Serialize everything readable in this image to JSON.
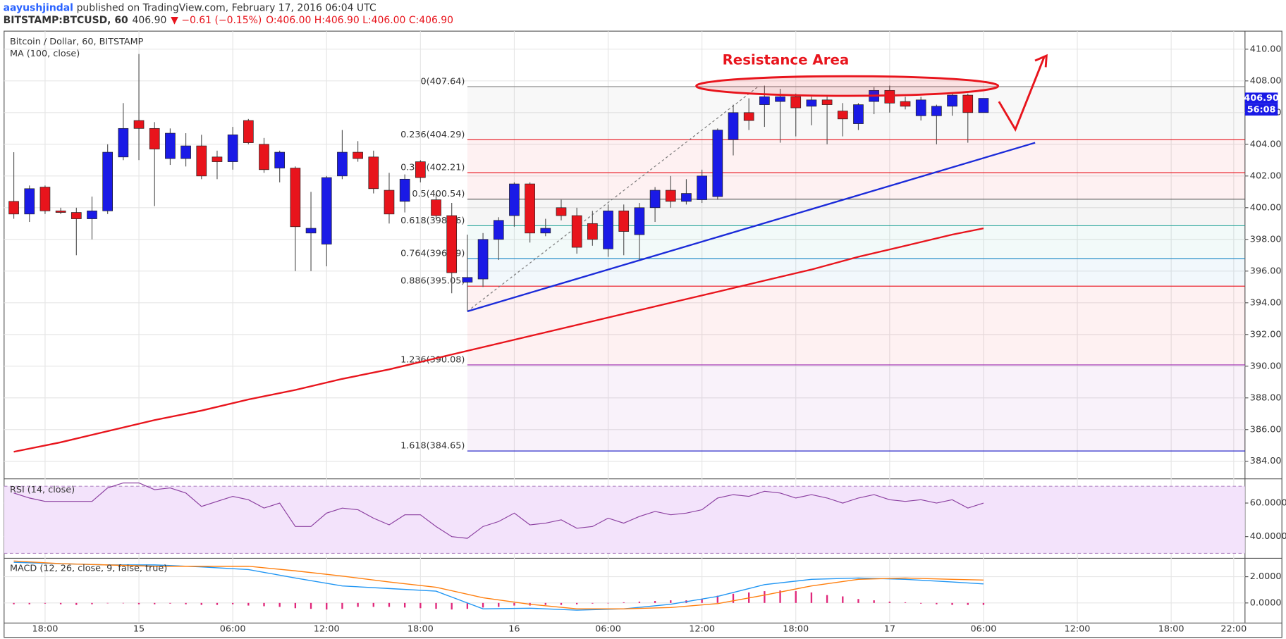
{
  "header": {
    "author": "aayushjindal",
    "published": "published on TradingView.com, February 17, 2016 06:04 UTC",
    "symbol": "BITSTAMP:BTCUSD, 60",
    "price": "406.90",
    "change": "▼ −0.61 (−0.15%)",
    "ohlc": "O:406.00 H:406.90 L:406.00 C:406.90"
  },
  "chart_data": [
    {
      "type": "candlestick",
      "title": "Bitcoin / Dollar, 60, BITSTAMP",
      "subtitle": "MA (100, close)",
      "up_color": "#1a1ae6",
      "down_color": "#e8141c",
      "x": [
        16,
        17,
        18,
        19,
        20,
        21,
        22,
        23,
        24,
        25,
        26,
        27,
        28,
        29,
        30,
        31,
        32,
        33,
        34,
        35,
        36,
        37,
        38,
        39,
        40,
        41,
        42,
        43,
        44,
        45,
        46,
        47,
        48,
        49,
        50,
        51,
        52,
        53,
        54,
        55,
        56,
        57,
        58,
        59,
        60,
        61,
        62,
        63,
        64,
        65,
        66,
        67,
        68,
        69,
        70,
        71,
        72,
        73,
        74,
        75,
        76,
        77,
        78
      ],
      "open": [
        400.4,
        399.6,
        401.3,
        399.8,
        399.7,
        399.3,
        399.8,
        403.2,
        405.5,
        405.0,
        403.1,
        403.1,
        403.9,
        403.2,
        402.9,
        405.5,
        404.0,
        402.5,
        402.5,
        398.4,
        397.7,
        402.0,
        403.5,
        403.2,
        401.1,
        400.4,
        402.9,
        400.5,
        399.5,
        395.3,
        395.5,
        398.0,
        399.5,
        401.5,
        398.4,
        400.0,
        399.5,
        399.0,
        397.4,
        399.8,
        398.3,
        400.0,
        401.1,
        400.4,
        400.5,
        400.7,
        404.3,
        406.0,
        406.5,
        406.7,
        407.0,
        406.4,
        406.8,
        406.1,
        405.3,
        406.7,
        407.4,
        406.7,
        405.8,
        405.8,
        406.4,
        407.1,
        406.0
      ],
      "high": [
        403.5,
        401.4,
        401.4,
        400.0,
        400.0,
        400.7,
        404.0,
        406.6,
        409.7,
        405.4,
        405.0,
        404.7,
        404.6,
        403.6,
        405.1,
        405.6,
        404.4,
        403.6,
        402.6,
        401.0,
        402.0,
        404.9,
        404.2,
        403.6,
        402.2,
        402.1,
        403.0,
        400.9,
        400.3,
        398.3,
        398.4,
        399.4,
        401.6,
        401.6,
        399.3,
        400.5,
        400.0,
        399.8,
        400.2,
        400.2,
        400.3,
        401.3,
        402.0,
        401.8,
        402.4,
        405.0,
        406.5,
        406.9,
        407.7,
        407.5,
        407.2,
        407.0,
        407.0,
        406.6,
        406.6,
        407.6,
        407.7,
        407.0,
        407.0,
        406.5,
        407.2,
        407.2,
        406.9
      ],
      "low": [
        399.3,
        399.1,
        399.6,
        399.6,
        397.0,
        398.0,
        399.6,
        403.0,
        403.0,
        400.1,
        402.7,
        402.6,
        401.8,
        401.8,
        402.4,
        404.0,
        402.2,
        401.6,
        396.0,
        396.0,
        396.3,
        401.8,
        402.9,
        400.9,
        399.0,
        399.7,
        401.6,
        399.3,
        394.6,
        393.5,
        395.0,
        396.7,
        398.8,
        397.8,
        398.2,
        399.2,
        397.1,
        397.6,
        396.9,
        397.0,
        396.7,
        399.1,
        400.0,
        400.2,
        400.3,
        400.5,
        403.3,
        404.9,
        405.1,
        404.1,
        404.5,
        405.2,
        404.0,
        404.5,
        404.9,
        405.9,
        406.0,
        406.2,
        405.5,
        404.0,
        405.8,
        404.1,
        406.0
      ],
      "close": [
        399.6,
        401.2,
        399.8,
        399.7,
        399.3,
        399.8,
        403.5,
        405.0,
        405.0,
        403.7,
        404.7,
        403.9,
        402.0,
        402.9,
        404.6,
        404.1,
        402.4,
        403.5,
        398.8,
        398.7,
        401.9,
        403.5,
        403.1,
        401.2,
        399.6,
        401.8,
        401.9,
        399.5,
        395.9,
        395.6,
        398.0,
        399.2,
        401.5,
        398.4,
        398.7,
        399.5,
        397.5,
        398.0,
        399.8,
        398.5,
        400.0,
        401.1,
        400.4,
        400.9,
        402.0,
        404.9,
        406.0,
        405.5,
        407.0,
        407.0,
        406.3,
        406.8,
        406.5,
        405.6,
        406.5,
        407.4,
        406.6,
        406.4,
        406.8,
        406.4,
        407.1,
        406.0,
        406.9
      ],
      "series": [
        {
          "name": "MA (100, close)",
          "color": "#e8141c",
          "x": [
            16,
            19,
            22,
            25,
            28,
            31,
            34,
            37,
            40,
            43,
            46,
            49,
            52,
            55,
            58,
            61,
            64,
            67,
            70,
            73,
            76,
            78
          ],
          "values": [
            384.6,
            385.2,
            385.9,
            386.6,
            387.2,
            387.9,
            388.5,
            389.2,
            389.8,
            390.5,
            391.2,
            391.9,
            392.6,
            393.3,
            394.0,
            394.7,
            395.4,
            396.1,
            396.9,
            397.6,
            398.3,
            398.7
          ]
        }
      ],
      "fib_levels": [
        {
          "label": "0(407.64)",
          "value": 407.64,
          "color": "#888888"
        },
        {
          "label": "0.236(404.29)",
          "value": 404.29,
          "color": "#e8141c"
        },
        {
          "label": "0.382(402.21)",
          "value": 402.21,
          "color": "#e8141c"
        },
        {
          "label": "0.5(400.54)",
          "value": 400.54,
          "color": "#555555"
        },
        {
          "label": "0.618(398.86)",
          "value": 398.86,
          "color": "#26a69a"
        },
        {
          "label": "0.764(396.79)",
          "value": 396.79,
          "color": "#2a8fc9"
        },
        {
          "label": "0.886(395.05)",
          "value": 395.05,
          "color": "#e8141c"
        },
        {
          "label": "1.236(390.08)",
          "value": 390.08,
          "color": "#9c27b0"
        },
        {
          "label": "1.618(384.65)",
          "value": 384.65,
          "color": "#2929c9"
        }
      ],
      "fib_start": 45,
      "fib_anchor": {
        "x": [
          45,
          63.6
        ],
        "values": [
          393.46,
          407.64
        ]
      },
      "trendline": {
        "color": "#1a2ad9",
        "x": [
          45,
          81.3
        ],
        "values": [
          393.46,
          404.1
        ]
      },
      "annotation": "Resistance Area",
      "last_price": {
        "value": 406.9,
        "label": "406.90"
      },
      "countdown": "56:08",
      "xlim": [
        15.38,
        94.72
      ],
      "xticks": [
        {
          "value": 18,
          "label": "18:00"
        },
        {
          "value": 24,
          "label": "15"
        },
        {
          "value": 30,
          "label": "06:00"
        },
        {
          "value": 36,
          "label": "12:00"
        },
        {
          "value": 42,
          "label": "18:00"
        },
        {
          "value": 48,
          "label": "16"
        },
        {
          "value": 54,
          "label": "06:00"
        },
        {
          "value": 60,
          "label": "12:00"
        },
        {
          "value": 66,
          "label": "18:00"
        },
        {
          "value": 72,
          "label": "17"
        },
        {
          "value": 78,
          "label": "06:00"
        },
        {
          "value": 84,
          "label": "12:00"
        },
        {
          "value": 90,
          "label": "18:00"
        },
        {
          "value": 94,
          "label": "22:00"
        }
      ],
      "ylim": [
        382.97,
        411.14
      ],
      "yticks": [
        {
          "value": 384,
          "label": "384.00"
        },
        {
          "value": 386,
          "label": "386.00"
        },
        {
          "value": 388,
          "label": "388.00"
        },
        {
          "value": 390,
          "label": "390.00"
        },
        {
          "value": 392,
          "label": "392.00"
        },
        {
          "value": 394,
          "label": "394.00"
        },
        {
          "value": 396,
          "label": "396.00"
        },
        {
          "value": 398,
          "label": "398.00"
        },
        {
          "value": 400,
          "label": "400.00"
        },
        {
          "value": 402,
          "label": "402.00"
        },
        {
          "value": 404,
          "label": "404.00"
        },
        {
          "value": 406,
          "label": "406.00"
        },
        {
          "value": 408,
          "label": "408.00"
        },
        {
          "value": 410,
          "label": "410.00"
        }
      ],
      "grid": true
    },
    {
      "type": "line",
      "title": "RSI (14, close)",
      "band": [
        30,
        70
      ],
      "series": [
        {
          "name": "RSI",
          "color": "#8b3fa0",
          "x": [
            16,
            17,
            18,
            19,
            20,
            21,
            22,
            23,
            24,
            25,
            26,
            27,
            28,
            29,
            30,
            31,
            32,
            33,
            34,
            35,
            36,
            37,
            38,
            39,
            40,
            41,
            42,
            43,
            44,
            45,
            46,
            47,
            48,
            49,
            50,
            51,
            52,
            53,
            54,
            55,
            56,
            57,
            58,
            59,
            60,
            61,
            62,
            63,
            64,
            65,
            66,
            67,
            68,
            69,
            70,
            71,
            72,
            73,
            74,
            75,
            76,
            77,
            78
          ],
          "values": [
            66,
            63,
            61,
            61,
            61,
            61,
            69,
            72,
            72,
            68,
            69,
            66,
            58,
            61,
            64,
            62,
            57,
            60,
            46,
            46,
            54,
            57,
            56,
            51,
            47,
            53,
            53,
            46,
            40,
            39,
            46,
            49,
            54,
            47,
            48,
            50,
            45,
            46,
            51,
            48,
            52,
            55,
            53,
            54,
            56,
            63,
            65,
            64,
            67,
            66,
            63,
            65,
            63,
            60,
            63,
            65,
            62,
            61,
            62,
            60,
            62,
            57,
            60
          ]
        }
      ],
      "ylim": [
        27.8,
        73.7
      ],
      "yticks": [
        {
          "value": 40,
          "label": "40.0000"
        },
        {
          "value": 60,
          "label": "60.0000"
        }
      ]
    },
    {
      "type": "macd",
      "title": "MACD (12, 26, close, 9, false, true)",
      "series": [
        {
          "name": "MACD",
          "color": "#2196f3",
          "x": [
            16,
            19,
            22,
            25,
            28,
            31,
            34,
            37,
            40,
            43,
            46,
            49,
            52,
            55,
            58,
            61,
            64,
            67,
            70,
            73,
            76,
            78
          ],
          "values": [
            3.1,
            3.0,
            2.9,
            2.9,
            2.75,
            2.55,
            1.9,
            1.3,
            1.1,
            0.9,
            -0.45,
            -0.4,
            -0.55,
            -0.45,
            -0.1,
            0.5,
            1.4,
            1.8,
            1.9,
            1.8,
            1.6,
            1.45
          ]
        },
        {
          "name": "Signal",
          "color": "#ff7f0e",
          "x": [
            16,
            19,
            22,
            25,
            28,
            31,
            34,
            37,
            40,
            43,
            46,
            49,
            52,
            55,
            58,
            61,
            64,
            67,
            70,
            73,
            76,
            78
          ],
          "values": [
            3.2,
            3.0,
            2.9,
            2.8,
            2.8,
            2.8,
            2.45,
            2.05,
            1.6,
            1.2,
            0.4,
            -0.1,
            -0.45,
            -0.45,
            -0.35,
            -0.05,
            0.6,
            1.3,
            1.8,
            1.9,
            1.8,
            1.75
          ]
        }
      ],
      "histogram": {
        "color": "#e0267a",
        "x": [
          16,
          17,
          18,
          19,
          20,
          21,
          22,
          23,
          24,
          25,
          26,
          27,
          28,
          29,
          30,
          31,
          32,
          33,
          34,
          35,
          36,
          37,
          38,
          39,
          40,
          41,
          42,
          43,
          44,
          45,
          46,
          47,
          48,
          49,
          50,
          51,
          52,
          53,
          54,
          55,
          56,
          57,
          58,
          59,
          60,
          61,
          62,
          63,
          64,
          65,
          66,
          67,
          68,
          69,
          70,
          71,
          72,
          73,
          74,
          75,
          76,
          77,
          78
        ],
        "values": [
          -0.1,
          -0.1,
          -0.05,
          -0.1,
          -0.15,
          -0.1,
          0,
          0,
          -0.1,
          -0.1,
          -0.05,
          -0.1,
          -0.15,
          -0.15,
          -0.1,
          -0.2,
          -0.25,
          -0.3,
          -0.4,
          -0.45,
          -0.5,
          -0.45,
          -0.3,
          -0.3,
          -0.3,
          -0.35,
          -0.4,
          -0.45,
          -0.5,
          -0.45,
          -0.35,
          -0.3,
          -0.2,
          -0.2,
          -0.15,
          -0.15,
          -0.1,
          -0.05,
          0,
          0.05,
          0.1,
          0.15,
          0.2,
          0.2,
          0.3,
          0.55,
          0.7,
          0.8,
          0.9,
          0.95,
          0.9,
          0.8,
          0.6,
          0.5,
          0.3,
          0.2,
          0.1,
          0.05,
          -0.05,
          -0.1,
          -0.15,
          -0.15,
          -0.15
        ]
      },
      "ylim": [
        -1.5,
        3.31
      ],
      "yticks": [
        {
          "value": 0,
          "label": "0.0000"
        },
        {
          "value": 2,
          "label": "2.0000"
        }
      ]
    }
  ]
}
